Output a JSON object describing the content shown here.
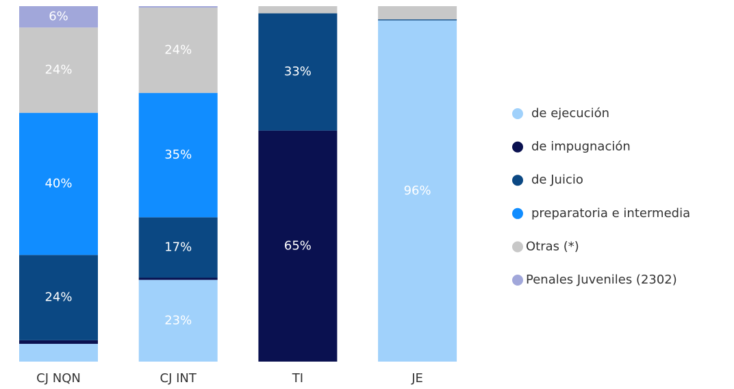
{
  "chart_data": {
    "type": "stacked_bar",
    "categories": [
      "CJ NQN",
      "CJ INT",
      "TI",
      "JE"
    ],
    "ylim": [
      0,
      100
    ],
    "series": [
      {
        "name": "de ejecución",
        "color": "#a0d1fb",
        "values": [
          5,
          23,
          0,
          96
        ],
        "value_labels": [
          null,
          "23%",
          null,
          "96%"
        ]
      },
      {
        "name": "de impugnación",
        "color": "#0a1150",
        "values": [
          1,
          0.6,
          65,
          0
        ],
        "value_labels": [
          null,
          null,
          "65%",
          null
        ]
      },
      {
        "name": "de Juicio",
        "color": "#0b4883",
        "values": [
          24,
          17,
          33,
          0.3
        ],
        "value_labels": [
          "24%",
          "17%",
          "33%",
          null
        ]
      },
      {
        "name": "preparatoria e intermedia",
        "color": "#118dff",
        "values": [
          40,
          35,
          0,
          0
        ],
        "value_labels": [
          "40%",
          "35%",
          null,
          null
        ]
      },
      {
        "name": "Otras (*)",
        "color": "#c8c8c8",
        "values": [
          24,
          24,
          2,
          3.7
        ],
        "value_labels": [
          "24%",
          "24%",
          null,
          null
        ]
      },
      {
        "name": "Penales Juveniles (2302)",
        "color": "#a1a7da",
        "values": [
          6,
          0.4,
          0,
          0
        ],
        "value_labels": [
          "6%",
          null,
          null,
          null
        ]
      }
    ]
  }
}
